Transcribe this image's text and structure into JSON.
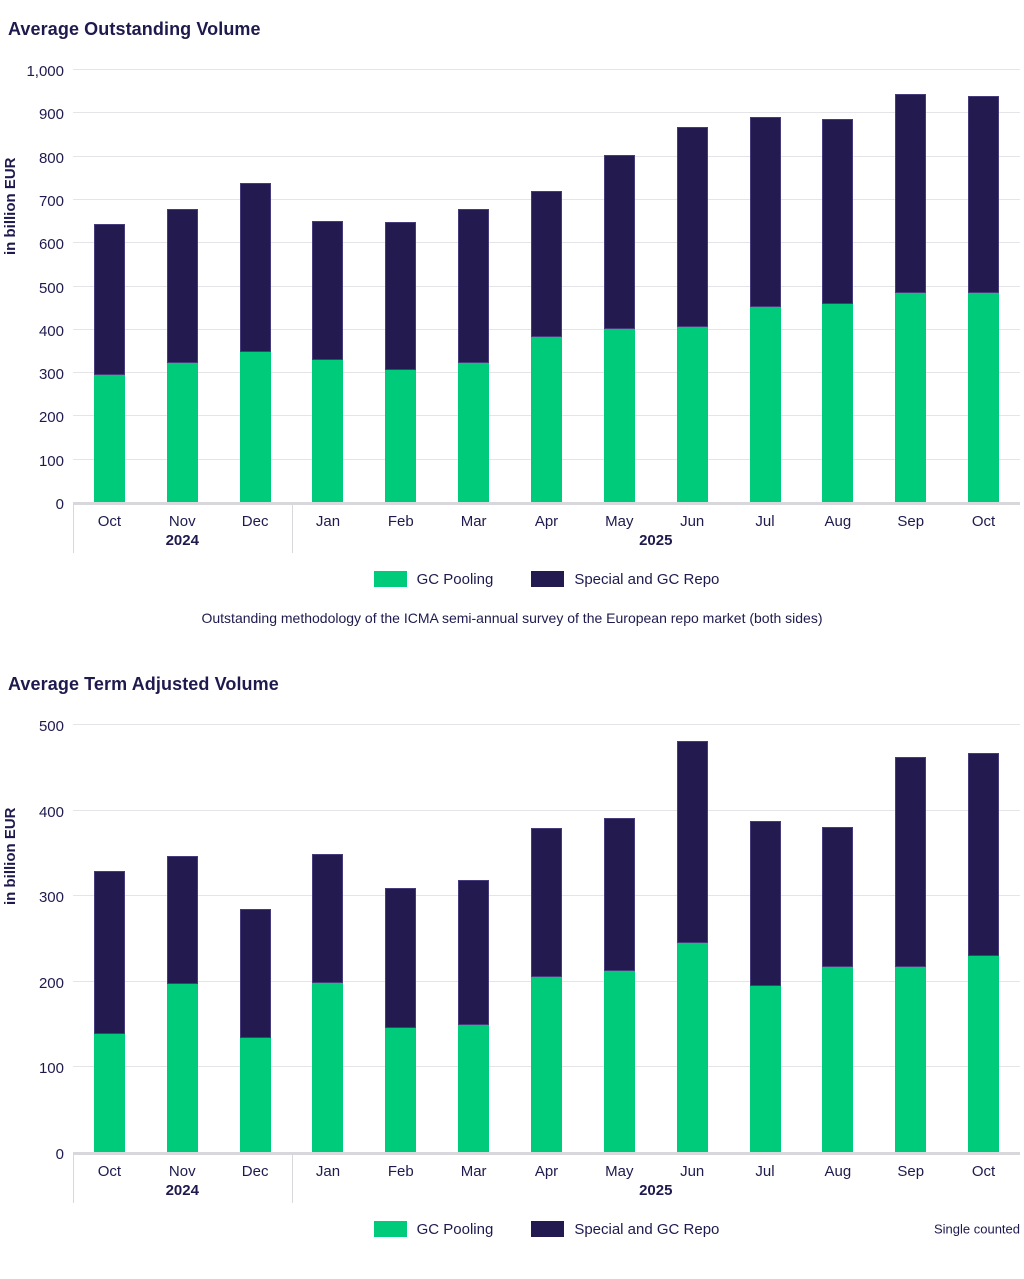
{
  "legend": {
    "items": [
      {
        "label": "GC Pooling",
        "color": "#00CB7B"
      },
      {
        "label": "Special and GC Repo",
        "color": "#231A4F"
      }
    ]
  },
  "colors": {
    "gc_pooling": "#00CB7B",
    "special_gc_repo": "#231A4F",
    "text": "#1E1A4E",
    "gridline": "#E5E5E9",
    "axis_line": "#D8D8DC"
  },
  "chart_data": [
    {
      "type": "bar",
      "stacked": true,
      "title": "Average Outstanding Volume",
      "ylabel": "in billion EUR",
      "ymax": 1000,
      "ystep": 100,
      "ylim": [
        0,
        1000
      ],
      "grid": true,
      "legend_position": "bottom-center",
      "categories": [
        "Oct",
        "Nov",
        "Dec",
        "Jan",
        "Feb",
        "Mar",
        "Apr",
        "May",
        "Jun",
        "Jul",
        "Aug",
        "Sep",
        "Oct"
      ],
      "year_groups": [
        {
          "label": "2024",
          "months": 3
        },
        {
          "label": "2025",
          "months": 10
        }
      ],
      "series": [
        {
          "name": "GC Pooling",
          "color": "#00CB7B",
          "values": [
            293,
            322,
            346,
            328,
            304,
            322,
            380,
            400,
            405,
            451,
            458,
            482,
            482
          ]
        },
        {
          "name": "Special and GC Repo",
          "color": "#231A4F",
          "values": [
            349,
            355,
            390,
            320,
            343,
            354,
            339,
            402,
            461,
            438,
            427,
            461,
            455
          ]
        }
      ],
      "totals": [
        642,
        677,
        736,
        648,
        647,
        676,
        719,
        802,
        866,
        889,
        885,
        943,
        937
      ],
      "caption": "Outstanding methodology of the ICMA semi-annual survey of the European repo market (both sides)"
    },
    {
      "type": "bar",
      "stacked": true,
      "title": "Average Term Adjusted Volume",
      "ylabel": "in billion EUR",
      "ymax": 500,
      "ystep": 100,
      "ylim": [
        0,
        500
      ],
      "grid": true,
      "legend_position": "bottom-center",
      "categories": [
        "Oct",
        "Nov",
        "Dec",
        "Jan",
        "Feb",
        "Mar",
        "Apr",
        "May",
        "Jun",
        "Jul",
        "Aug",
        "Sep",
        "Oct"
      ],
      "year_groups": [
        {
          "label": "2024",
          "months": 3
        },
        {
          "label": "2025",
          "months": 10
        }
      ],
      "series": [
        {
          "name": "GC Pooling",
          "color": "#00CB7B",
          "values": [
            138,
            196,
            133,
            198,
            145,
            148,
            205,
            212,
            244,
            194,
            216,
            216,
            229
          ]
        },
        {
          "name": "Special and GC Repo",
          "color": "#231A4F",
          "values": [
            190,
            150,
            151,
            150,
            163,
            170,
            173,
            178,
            236,
            193,
            164,
            245,
            237
          ]
        }
      ],
      "totals": [
        328,
        346,
        284,
        348,
        308,
        318,
        378,
        390,
        480,
        387,
        380,
        461,
        466
      ],
      "footnote": "Single counted"
    }
  ]
}
